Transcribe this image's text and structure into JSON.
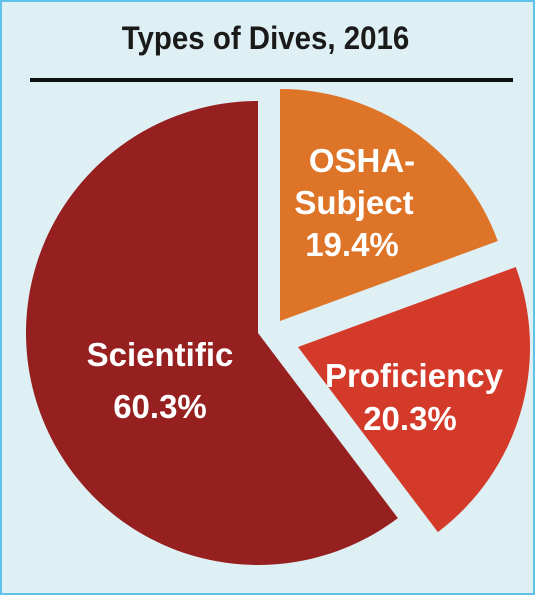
{
  "chart_data": {
    "type": "pie",
    "title": "Types of Dives, 2016",
    "slices": [
      {
        "label_lines": [
          "Scientific"
        ],
        "value_label": "60.3%",
        "value": 60.3,
        "color": "#96201f"
      },
      {
        "label_lines": [
          "OSHA-",
          "Subject"
        ],
        "value_label": "19.4%",
        "value": 19.4,
        "color": "#de7428"
      },
      {
        "label_lines": [
          "Proficiency"
        ],
        "value_label": "20.3%",
        "value": 20.3,
        "color": "#d43a29"
      }
    ],
    "legend": "none",
    "exploded": true
  },
  "colors": {
    "background": "#dff0f5",
    "border": "#5ec3e6"
  }
}
